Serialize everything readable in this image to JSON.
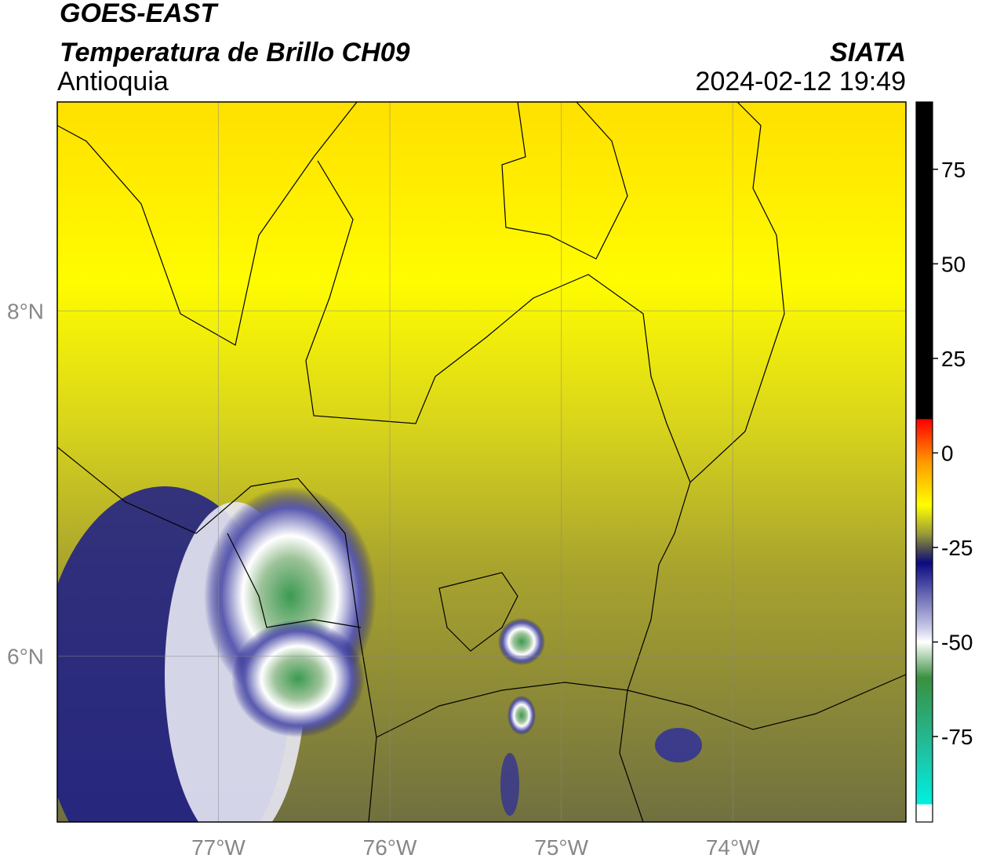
{
  "header": {
    "title": "GOES-EAST",
    "subtitle": "Temperatura de Brillo CH09",
    "region": "Antioquia",
    "source": "SIATA",
    "datetime": "2024-02-12 19:49"
  },
  "map": {
    "lonlim": [
      -77.94,
      -72.99
    ],
    "latlim": [
      5.04,
      9.21
    ],
    "lon_ticks": [
      {
        "value": -77,
        "label": "77°W"
      },
      {
        "value": -76,
        "label": "76°W"
      },
      {
        "value": -75,
        "label": "75°W"
      },
      {
        "value": -74,
        "label": "74°W"
      }
    ],
    "lat_ticks": [
      {
        "value": 8,
        "label": "8°N"
      },
      {
        "value": 6,
        "label": "6°N"
      }
    ]
  },
  "colorbar": {
    "range": [
      -97.6,
      92.8
    ],
    "ticks": [
      75,
      50,
      25,
      0,
      -25,
      -50,
      -75
    ]
  }
}
